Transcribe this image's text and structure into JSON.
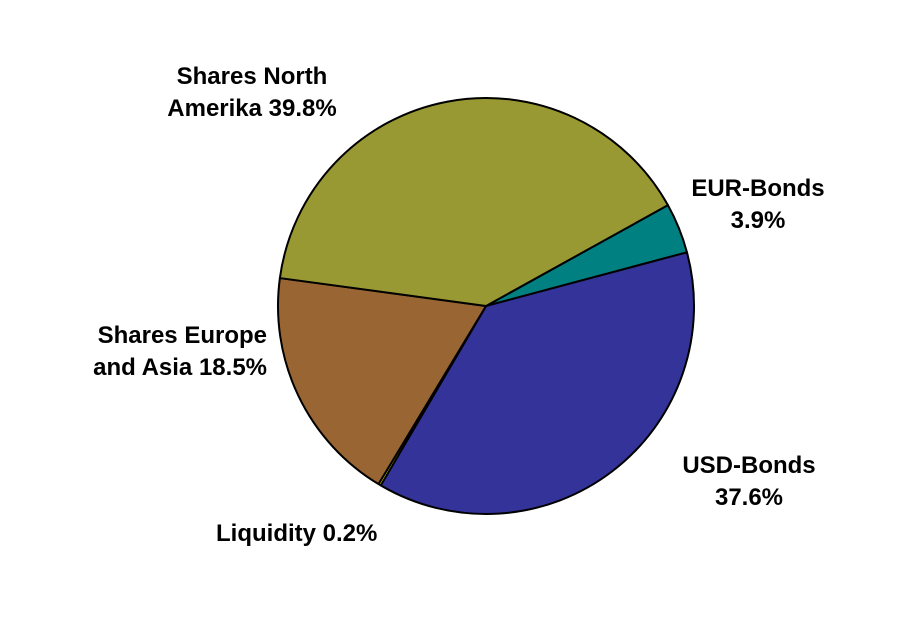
{
  "chart_data": {
    "type": "pie",
    "start_angle_deg": 61,
    "direction": "clockwise",
    "slices": [
      {
        "lines": [
          "EUR-Bonds",
          "3.9%"
        ],
        "value": 3.9,
        "color": "#008080"
      },
      {
        "lines": [
          "USD-Bonds",
          "37.6%"
        ],
        "value": 37.6,
        "color": "#333399"
      },
      {
        "lines": [
          "Liquidity 0.2%"
        ],
        "value": 0.2,
        "color": "#ffff00"
      },
      {
        "lines": [
          "Shares Europe",
          "and Asia 18.5%"
        ],
        "value": 18.5,
        "color": "#996633"
      },
      {
        "lines": [
          "Shares North",
          "Amerika 39.8%"
        ],
        "value": 39.8,
        "color": "#999933"
      }
    ]
  }
}
